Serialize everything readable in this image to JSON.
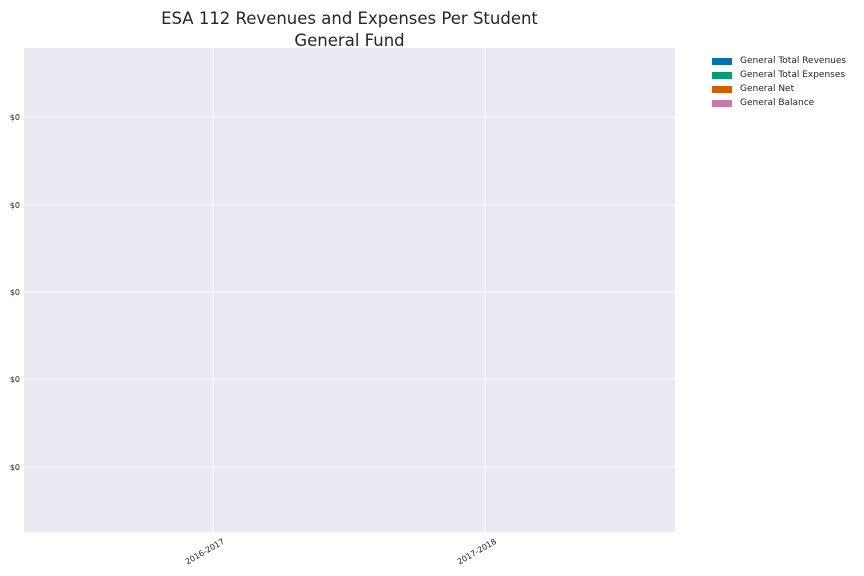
{
  "chart_data": {
    "type": "bar",
    "title": "ESA 112 Revenues and Expenses Per Student",
    "subtitle": "General Fund",
    "categories": [
      "2016-2017",
      "2017-2018"
    ],
    "series": [
      {
        "name": "General Total Revenues",
        "color": "#0072b2",
        "values": [
          0,
          0
        ]
      },
      {
        "name": "General Total Expenses",
        "color": "#009e73",
        "values": [
          0,
          0
        ]
      },
      {
        "name": "General Net",
        "color": "#d55e00",
        "values": [
          0,
          0
        ]
      },
      {
        "name": "General Balance",
        "color": "#cc79a7",
        "values": [
          0,
          0
        ]
      }
    ],
    "y_tick_labels": [
      "$0",
      "$0",
      "$0",
      "$0",
      "$0"
    ],
    "legend_position": "outside top-right",
    "grid": true,
    "background": "#eaeaf2",
    "grid_color": "#ffffff"
  }
}
